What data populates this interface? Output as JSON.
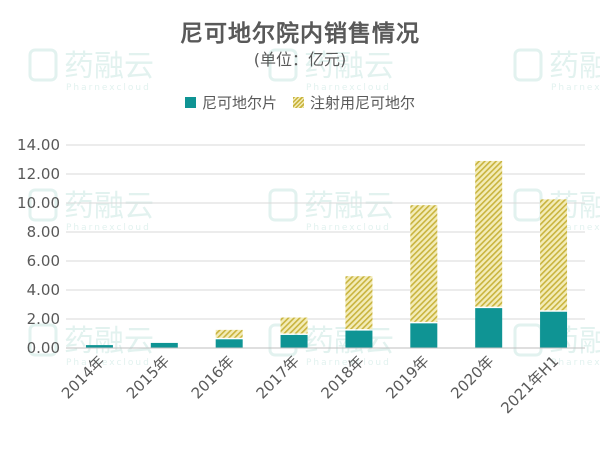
{
  "chart_data": {
    "type": "bar",
    "stacked": true,
    "title": "尼可地尔院内销售情况",
    "subtitle": "(单位：亿元)",
    "categories": [
      "2014年",
      "2015年",
      "2016年",
      "2017年",
      "2018年",
      "2019年",
      "2020年",
      "2021年H1"
    ],
    "series": [
      {
        "name": "尼可地尔片",
        "values": [
          0.2,
          0.35,
          0.6,
          0.9,
          1.2,
          1.7,
          2.75,
          2.5
        ]
      },
      {
        "name": "注射用尼可地尔",
        "values": [
          0.0,
          0.0,
          0.65,
          1.2,
          3.75,
          8.15,
          10.15,
          7.75
        ]
      }
    ],
    "ylim": [
      0,
      14
    ],
    "yticks": [
      "0.00",
      "2.00",
      "4.00",
      "6.00",
      "8.00",
      "10.00",
      "12.00",
      "14.00"
    ],
    "legend_position": "top",
    "grid": true
  },
  "colors": {
    "tablet": "#0f9494",
    "injection_dark": "#c9b43e",
    "injection_light": "#f3ecb8",
    "watermark": "#dff1ee"
  },
  "watermark": {
    "text": "药融云",
    "sub": "Pharnexcloud"
  }
}
